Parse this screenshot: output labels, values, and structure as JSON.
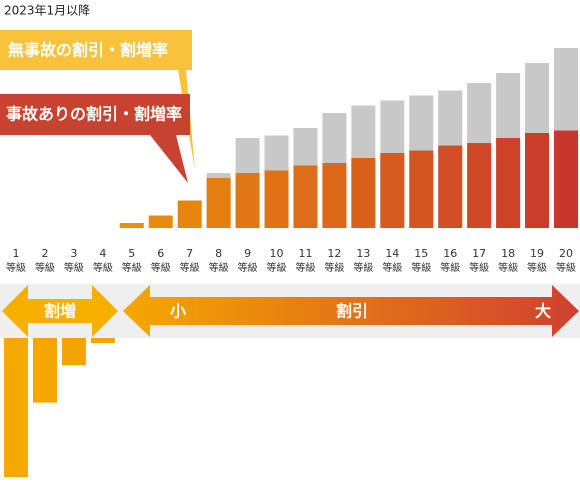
{
  "chart_data": {
    "type": "bar",
    "title": "2023年1月以降",
    "categories": [
      "1",
      "2",
      "3",
      "4",
      "5",
      "6",
      "7",
      "8",
      "9",
      "10",
      "11",
      "12",
      "13",
      "14",
      "15",
      "16",
      "17",
      "18",
      "19",
      "20"
    ],
    "category_unit": "等級",
    "series": [
      {
        "name": "無事故の割引・割増率",
        "color": "#f9c23c",
        "values": [
          -56,
          -26,
          -11,
          -2,
          2,
          5,
          11,
          22,
          36,
          37,
          40,
          46,
          49,
          51,
          53,
          55,
          58,
          62,
          66,
          72
        ]
      },
      {
        "name": "事故ありの割引・割増率",
        "color": "#c8432f",
        "values": [
          null,
          null,
          null,
          null,
          null,
          null,
          null,
          20,
          22,
          23,
          25,
          26,
          28,
          30,
          31,
          33,
          34,
          36,
          38,
          39
        ]
      }
    ],
    "ylim": [
      -56,
      72
    ],
    "surcharge_label": "割増",
    "discount_label": "割引",
    "discount_small": "小",
    "discount_large": "大"
  }
}
